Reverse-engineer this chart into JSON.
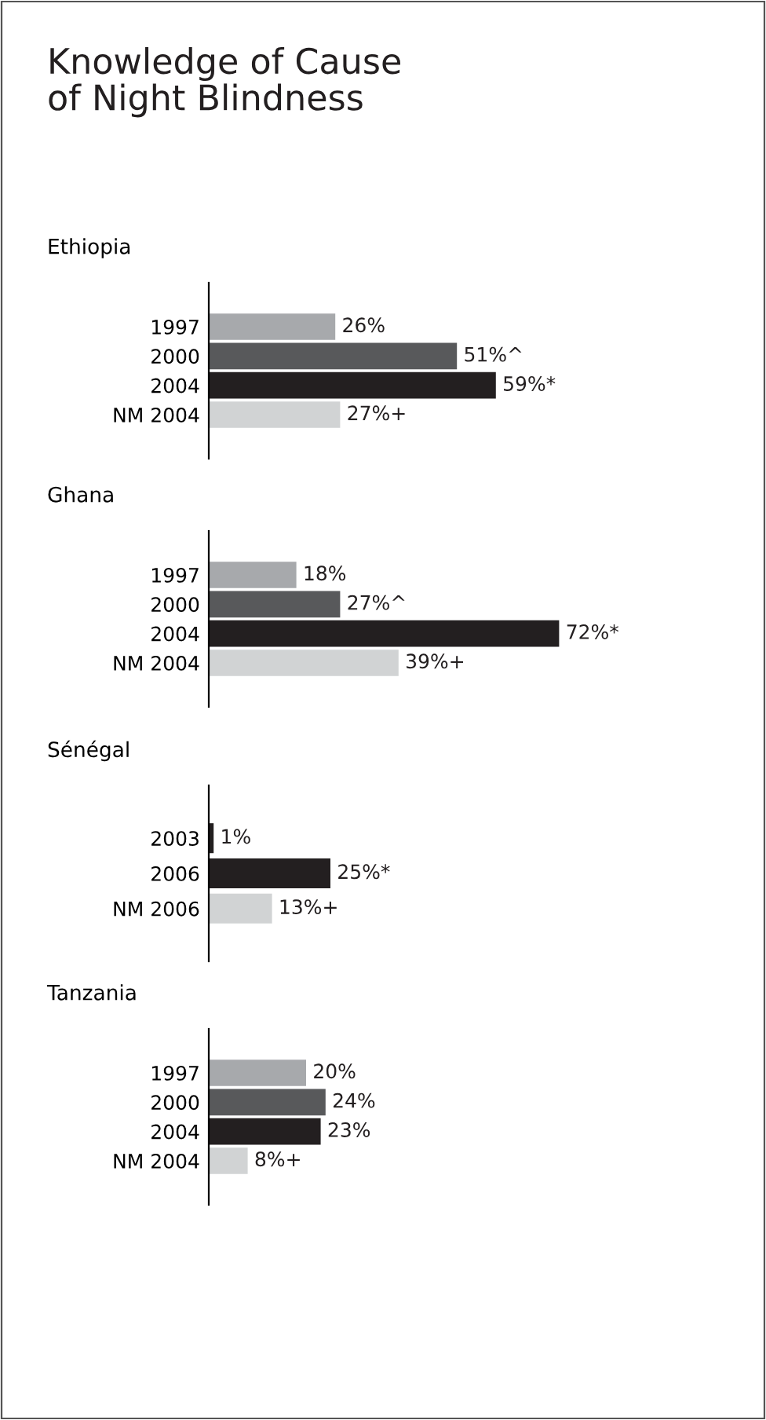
{
  "chart_data": [
    {
      "type": "bar",
      "orientation": "horizontal",
      "title": "Knowledge of Cause of Night Blindness",
      "subtitle": "Ethiopia",
      "categories": [
        "1997",
        "2000",
        "2004",
        "NM 2004"
      ],
      "values": [
        26,
        51,
        59,
        27
      ],
      "colors": [
        "#a7a9ac",
        "#58595b",
        "#231f20",
        "#d1d3d4"
      ],
      "value_labels": [
        "26%",
        "51%^",
        "59%*",
        "27%+"
      ],
      "tick_labels": "y",
      "grid": false,
      "legend": false
    },
    {
      "type": "bar",
      "orientation": "horizontal",
      "title": "Ghana",
      "categories": [
        "1997",
        "2000",
        "2004",
        "NM 2004"
      ],
      "values": [
        18,
        27,
        72,
        39
      ],
      "colors": [
        "#a7a9ac",
        "#58595b",
        "#231f20",
        "#d1d3d4"
      ],
      "value_labels": [
        "18%",
        "27%^",
        "72%*",
        "39%+"
      ],
      "tick_labels": "y",
      "grid": false,
      "legend": false
    },
    {
      "type": "bar",
      "orientation": "horizontal",
      "title": "Sénégal",
      "categories": [
        "2003",
        "2006",
        "NM 2006"
      ],
      "values": [
        1,
        25,
        13
      ],
      "colors": [
        "#231f20",
        "#231f20",
        "#d1d3d4"
      ],
      "value_labels": [
        "1%",
        "25%*",
        "13%+"
      ],
      "tick_labels": "y",
      "grid": false,
      "legend": false
    },
    {
      "type": "bar",
      "orientation": "horizontal",
      "title": "Tanzania",
      "categories": [
        "1997",
        "2000",
        "2004",
        "NM 2004"
      ],
      "values": [
        20,
        24,
        23,
        8
      ],
      "colors": [
        "#a7a9ac",
        "#58595b",
        "#231f20",
        "#d1d3d4"
      ],
      "value_labels": [
        "20%",
        "24%",
        "23%",
        "8%+"
      ],
      "tick_labels": "y",
      "grid": false,
      "legend": false
    }
  ]
}
